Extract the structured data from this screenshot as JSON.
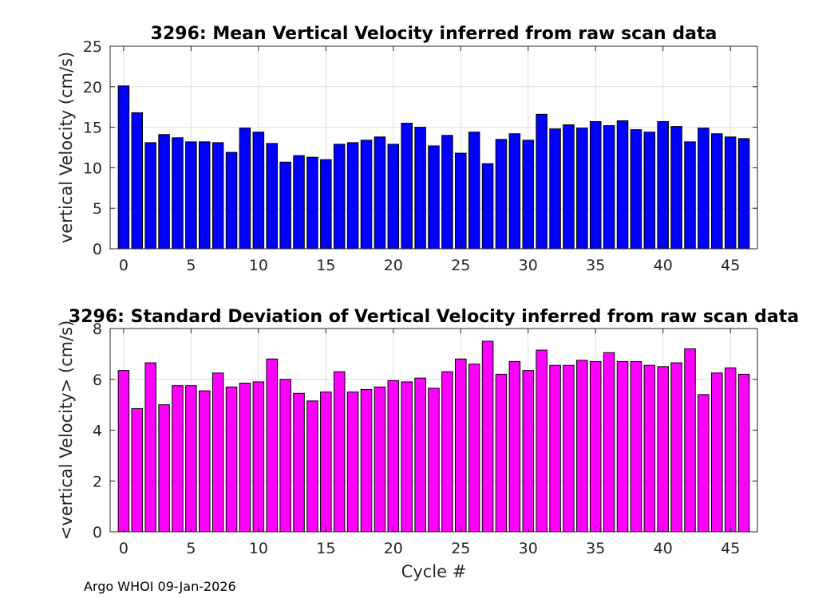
{
  "chart_data": [
    {
      "type": "bar",
      "title": "3296: Mean Vertical Velocity inferred from raw scan data",
      "xlabel": "",
      "ylabel": "vertical Velocity (cm/s)",
      "color": "#0000ff",
      "xlim": [
        -1,
        47
      ],
      "ylim": [
        0,
        25
      ],
      "xticks": [
        0,
        5,
        10,
        15,
        20,
        25,
        30,
        35,
        40,
        45
      ],
      "yticks": [
        0,
        5,
        10,
        15,
        20,
        25
      ],
      "grid": true,
      "x": [
        0,
        1,
        2,
        3,
        4,
        5,
        6,
        7,
        8,
        9,
        10,
        11,
        12,
        13,
        14,
        15,
        16,
        17,
        18,
        19,
        20,
        21,
        22,
        23,
        24,
        25,
        26,
        27,
        28,
        29,
        30,
        31,
        32,
        33,
        34,
        35,
        36,
        37,
        38,
        39,
        40,
        41,
        42,
        43,
        44,
        45,
        46
      ],
      "values": [
        20.1,
        16.8,
        13.1,
        14.1,
        13.7,
        13.2,
        13.2,
        13.1,
        11.9,
        14.9,
        14.4,
        13.0,
        10.7,
        11.5,
        11.3,
        11.0,
        12.9,
        13.1,
        13.4,
        13.8,
        12.9,
        15.5,
        15.0,
        12.7,
        14.0,
        11.8,
        14.4,
        10.5,
        13.5,
        14.2,
        13.4,
        16.6,
        14.8,
        15.3,
        14.9,
        15.7,
        15.2,
        15.8,
        14.7,
        14.4,
        15.7,
        15.1,
        13.2,
        14.9,
        14.2,
        13.8,
        13.6
      ]
    },
    {
      "type": "bar",
      "title": "3296: Standard Deviation of Vertical Velocity inferred from raw scan data",
      "xlabel": "Cycle #",
      "ylabel": "<vertical Velocity> (cm/s)",
      "color": "#ff00ff",
      "xlim": [
        -1,
        47
      ],
      "ylim": [
        0,
        8
      ],
      "xticks": [
        0,
        5,
        10,
        15,
        20,
        25,
        30,
        35,
        40,
        45
      ],
      "yticks": [
        0,
        2,
        4,
        6,
        8
      ],
      "grid": true,
      "x": [
        0,
        1,
        2,
        3,
        4,
        5,
        6,
        7,
        8,
        9,
        10,
        11,
        12,
        13,
        14,
        15,
        16,
        17,
        18,
        19,
        20,
        21,
        22,
        23,
        24,
        25,
        26,
        27,
        28,
        29,
        30,
        31,
        32,
        33,
        34,
        35,
        36,
        37,
        38,
        39,
        40,
        41,
        42,
        43,
        44,
        45,
        46
      ],
      "values": [
        6.35,
        4.85,
        6.65,
        5.0,
        5.75,
        5.75,
        5.55,
        6.25,
        5.7,
        5.85,
        5.9,
        6.8,
        6.0,
        5.45,
        5.15,
        5.5,
        6.3,
        5.5,
        5.6,
        5.7,
        5.95,
        5.9,
        6.05,
        5.65,
        6.3,
        6.8,
        6.6,
        7.5,
        6.2,
        6.7,
        6.35,
        7.15,
        6.55,
        6.55,
        6.75,
        6.7,
        7.05,
        6.7,
        6.7,
        6.55,
        6.5,
        6.65,
        7.2,
        5.4,
        6.25,
        6.45,
        6.2
      ]
    }
  ],
  "footer": "Argo WHOI 09-Jan-2026"
}
